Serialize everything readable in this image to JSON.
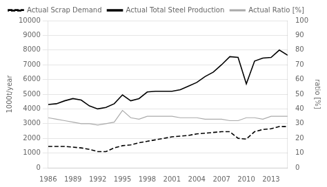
{
  "chart_data": {
    "type": "line",
    "x": [
      1986,
      1987,
      1988,
      1989,
      1990,
      1991,
      1992,
      1993,
      1994,
      1995,
      1996,
      1997,
      1998,
      1999,
      2000,
      2001,
      2002,
      2003,
      2004,
      2005,
      2006,
      2007,
      2008,
      2009,
      2010,
      2011,
      2012,
      2013,
      2014,
      2015
    ],
    "series": [
      {
        "name": "Actual Scrap Demand",
        "color": "#000000",
        "line_style": "dashed",
        "values": [
          1450,
          1450,
          1450,
          1400,
          1350,
          1250,
          1100,
          1100,
          1350,
          1500,
          1550,
          1700,
          1800,
          1900,
          2000,
          2100,
          2150,
          2200,
          2300,
          2350,
          2400,
          2450,
          2450,
          2000,
          1950,
          2450,
          2600,
          2650,
          2800,
          2800
        ]
      },
      {
        "name": "Actual Total Steel Production",
        "color": "#000000",
        "line_style": "solid",
        "values": [
          4300,
          4350,
          4550,
          4700,
          4600,
          4200,
          4000,
          4100,
          4350,
          4950,
          4550,
          4700,
          5150,
          5200,
          5200,
          5200,
          5300,
          5550,
          5800,
          6200,
          6500,
          7000,
          7550,
          7500,
          5700,
          7250,
          7450,
          7500,
          8000,
          7650
        ]
      },
      {
        "name": "Actual Ratio [%]",
        "color": "#aaaaaa",
        "line_style": "solid",
        "axis": "y2",
        "values": [
          34,
          33,
          32,
          31,
          30,
          30,
          29,
          30,
          31,
          39,
          34,
          33,
          35,
          35,
          35,
          35,
          34,
          34,
          34,
          33,
          33,
          33,
          32,
          32,
          34,
          34,
          33,
          35,
          35,
          35
        ]
      }
    ],
    "xlim": [
      1986,
      2015
    ],
    "xticks": [
      1986,
      1989,
      1992,
      1995,
      1998,
      2001,
      2004,
      2007,
      2010,
      2013
    ],
    "ylim": [
      0,
      10000
    ],
    "yticks": [
      0,
      1000,
      2000,
      3000,
      4000,
      5000,
      6000,
      7000,
      8000,
      9000,
      10000
    ],
    "y2lim": [
      0,
      100
    ],
    "y2ticks": [
      0,
      10,
      20,
      30,
      40,
      50,
      60,
      70,
      80,
      90,
      100
    ],
    "ylabel": "1000t/year",
    "y2label": "ratio [%]",
    "grid": true,
    "legend": "upper left"
  }
}
